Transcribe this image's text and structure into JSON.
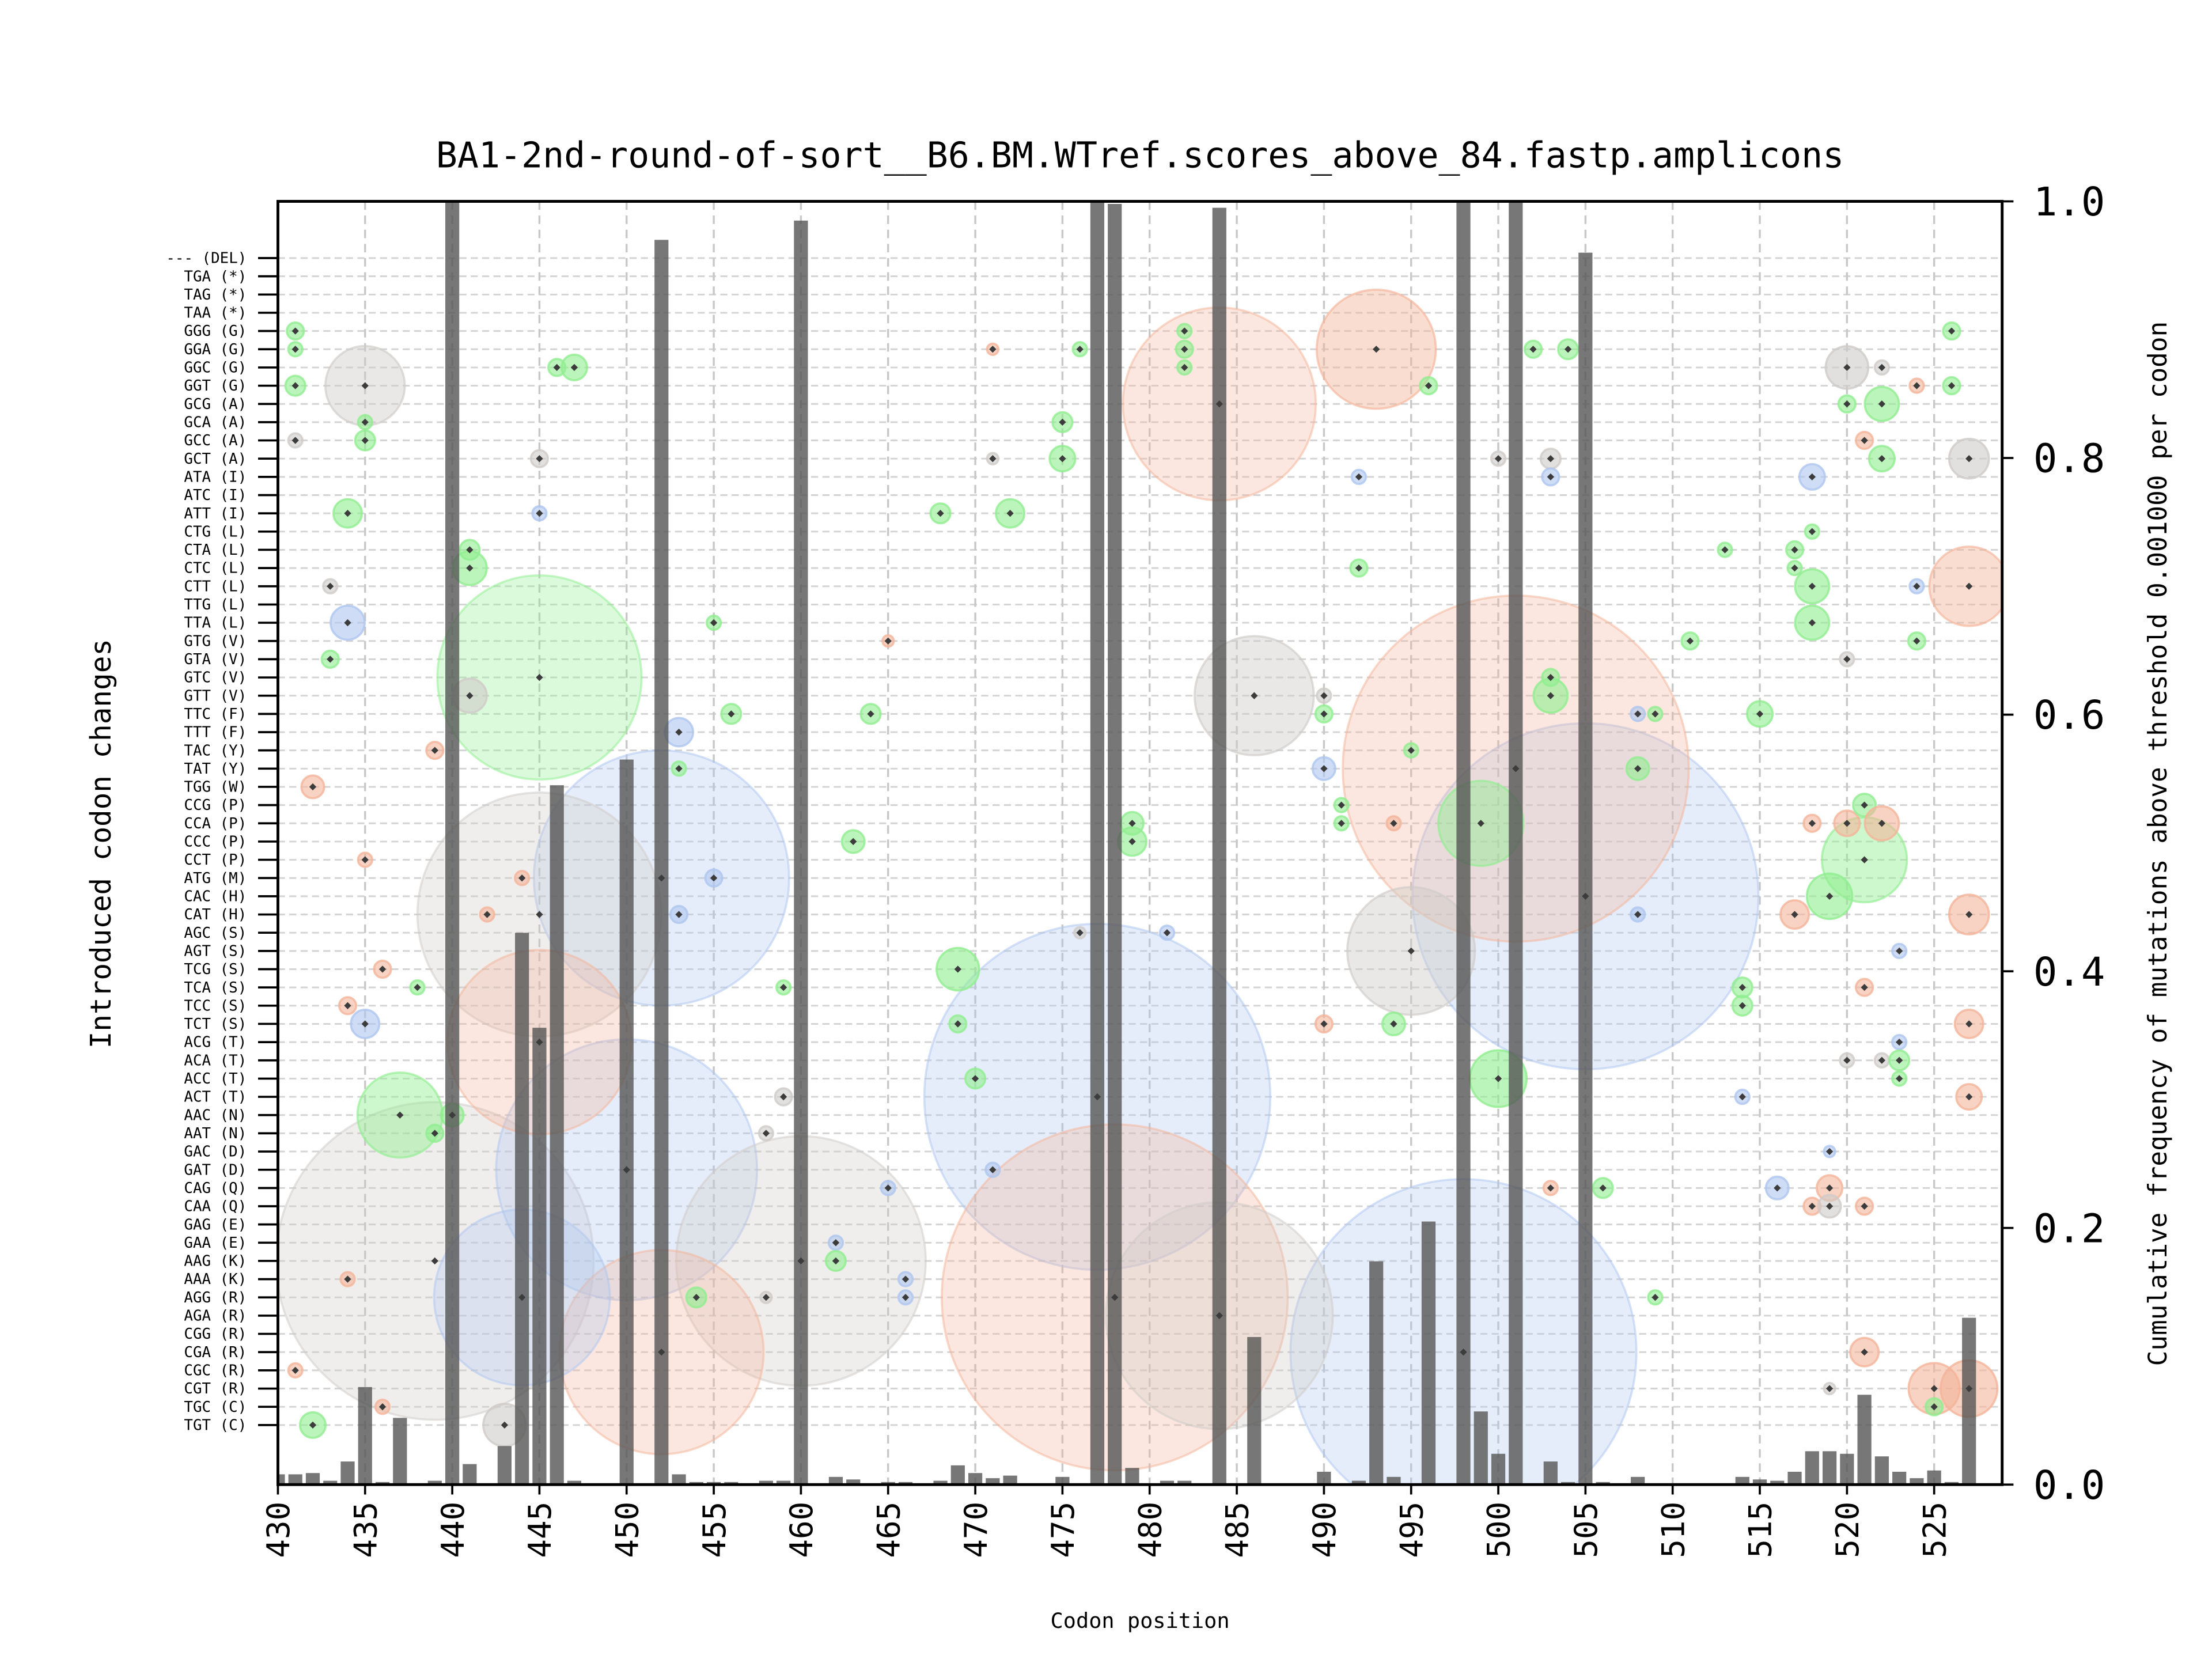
{
  "chart_data": {
    "type": "bar+bubble",
    "title": "BA1-2nd-round-of-sort__B6.BM.WTref.scores_above_84.fastp.amplicons",
    "xlabel": "Codon position",
    "ylabel_left": "Introduced codon changes",
    "ylabel_right": "Cumulative frequency of mutations above threshold 0.001000 per codon",
    "xlim": [
      430,
      528.9
    ],
    "ylim_right": [
      0,
      1
    ],
    "x_ticks": [
      430,
      435,
      440,
      445,
      450,
      455,
      460,
      465,
      470,
      475,
      480,
      485,
      490,
      495,
      500,
      505,
      510,
      515,
      520,
      525
    ],
    "y_ticks_right": [
      "0.0",
      "0.2",
      "0.4",
      "0.6",
      "0.8",
      "1.0"
    ],
    "y_tick_values_right": [
      0,
      0.2,
      0.4,
      0.6,
      0.8,
      1.0
    ],
    "grid": true,
    "codon_rows": [
      "--- (DEL)",
      "TGA (*)",
      "TAG (*)",
      "TAA (*)",
      "GGG (G)",
      "GGA (G)",
      "GGC (G)",
      "GGT (G)",
      "GCG (A)",
      "GCA (A)",
      "GCC (A)",
      "GCT (A)",
      "ATA (I)",
      "ATC (I)",
      "ATT (I)",
      "CTG (L)",
      "CTA (L)",
      "CTC (L)",
      "CTT (L)",
      "TTG (L)",
      "TTA (L)",
      "GTG (V)",
      "GTA (V)",
      "GTC (V)",
      "GTT (V)",
      "TTC (F)",
      "TTT (F)",
      "TAC (Y)",
      "TAT (Y)",
      "TGG (W)",
      "CCG (P)",
      "CCA (P)",
      "CCC (P)",
      "CCT (P)",
      "ATG (M)",
      "CAC (H)",
      "CAT (H)",
      "AGC (S)",
      "AGT (S)",
      "TCG (S)",
      "TCA (S)",
      "TCC (S)",
      "TCT (S)",
      "ACG (T)",
      "ACA (T)",
      "ACC (T)",
      "ACT (T)",
      "AAC (N)",
      "AAT (N)",
      "GAC (D)",
      "GAT (D)",
      "CAG (Q)",
      "CAA (Q)",
      "GAG (E)",
      "GAA (E)",
      "AAG (K)",
      "AAA (K)",
      "AGG (R)",
      "AGA (R)",
      "CGG (R)",
      "CGA (R)",
      "CGC (R)",
      "CGT (R)",
      "TGC (C)",
      "TGT (C)"
    ],
    "bars": [
      [
        430,
        0.008
      ],
      [
        431,
        0.008
      ],
      [
        432,
        0.009
      ],
      [
        433,
        0.003
      ],
      [
        434,
        0.018
      ],
      [
        435,
        0.076
      ],
      [
        436,
        0.002
      ],
      [
        437,
        0.052
      ],
      [
        439,
        0.003
      ],
      [
        440,
        1.0
      ],
      [
        441,
        0.016
      ],
      [
        443,
        0.03
      ],
      [
        444,
        0.43
      ],
      [
        445,
        0.356
      ],
      [
        446,
        0.545
      ],
      [
        447,
        0.003
      ],
      [
        450,
        0.565
      ],
      [
        452,
        0.97
      ],
      [
        453,
        0.008
      ],
      [
        454,
        0.002
      ],
      [
        455,
        0.002
      ],
      [
        456,
        0.002
      ],
      [
        458,
        0.003
      ],
      [
        459,
        0.003
      ],
      [
        460,
        0.985
      ],
      [
        462,
        0.006
      ],
      [
        463,
        0.004
      ],
      [
        465,
        0.002
      ],
      [
        466,
        0.002
      ],
      [
        468,
        0.003
      ],
      [
        469,
        0.015
      ],
      [
        470,
        0.009
      ],
      [
        471,
        0.005
      ],
      [
        472,
        0.007
      ],
      [
        475,
        0.006
      ],
      [
        477,
        1.0
      ],
      [
        478,
        0.998
      ],
      [
        479,
        0.013
      ],
      [
        481,
        0.003
      ],
      [
        482,
        0.003
      ],
      [
        484,
        0.995
      ],
      [
        486,
        0.115
      ],
      [
        490,
        0.01
      ],
      [
        492,
        0.003
      ],
      [
        493,
        0.174
      ],
      [
        494,
        0.006
      ],
      [
        496,
        0.205
      ],
      [
        498,
        1.0
      ],
      [
        499,
        0.057
      ],
      [
        500,
        0.024
      ],
      [
        501,
        1.0
      ],
      [
        503,
        0.018
      ],
      [
        504,
        0.002
      ],
      [
        505,
        0.96
      ],
      [
        506,
        0.002
      ],
      [
        508,
        0.006
      ],
      [
        510,
        0.001
      ],
      [
        514,
        0.006
      ],
      [
        515,
        0.004
      ],
      [
        516,
        0.003
      ],
      [
        517,
        0.01
      ],
      [
        518,
        0.026
      ],
      [
        519,
        0.026
      ],
      [
        520,
        0.024
      ],
      [
        521,
        0.07
      ],
      [
        522,
        0.022
      ],
      [
        523,
        0.01
      ],
      [
        524,
        0.005
      ],
      [
        525,
        0.011
      ],
      [
        526,
        0.002
      ],
      [
        527,
        0.13
      ]
    ],
    "bubble_colors": {
      "green": "#90ee90",
      "blue": "#aec6ef",
      "orange": "#f4b49a",
      "grey": "#cfcbc8"
    },
    "bubbles": [
      [
        439,
        "AAG (K)",
        "grey",
        112
      ],
      [
        477,
        "ACT (T)",
        "blue",
        122
      ],
      [
        478,
        "AGG (R)",
        "orange",
        122
      ],
      [
        498,
        "CGA (R)",
        "blue",
        122
      ],
      [
        505,
        "CAC (H)",
        "blue",
        122
      ],
      [
        501,
        "TAT (Y)",
        "orange",
        122
      ],
      [
        452,
        "ATG (M)",
        "blue",
        90
      ],
      [
        445,
        "CAT (H)",
        "grey",
        86
      ],
      [
        450,
        "GAT (D)",
        "blue",
        92
      ],
      [
        460,
        "AAG (K)",
        "grey",
        88
      ],
      [
        484,
        "AGA (R)",
        "grey",
        80
      ],
      [
        445,
        "GTC (V)",
        "green",
        72
      ],
      [
        484,
        "GCG (A)",
        "orange",
        68
      ],
      [
        445,
        "ACG (T)",
        "orange",
        65
      ],
      [
        452,
        "CGA (R)",
        "orange",
        72
      ],
      [
        444,
        "AGG (R)",
        "blue",
        62
      ],
      [
        493,
        "GGA (G)",
        "orange",
        42
      ],
      [
        486,
        "GTT (V)",
        "grey",
        42
      ],
      [
        495,
        "AGT (S)",
        "grey",
        45
      ],
      [
        437,
        "AAC (N)",
        "green",
        30
      ],
      [
        499,
        "CCA (P)",
        "green",
        30
      ],
      [
        521,
        "CCT (P)",
        "green",
        30
      ],
      [
        500,
        "ACC (T)",
        "green",
        20
      ],
      [
        519,
        "CAC (H)",
        "green",
        16
      ],
      [
        469,
        "TCG (S)",
        "green",
        15
      ],
      [
        435,
        "GGT (G)",
        "grey",
        28
      ],
      [
        527,
        "CTT (L)",
        "orange",
        28
      ],
      [
        525,
        "CGT (R)",
        "orange",
        18
      ],
      [
        527,
        "CGT (R)",
        "orange",
        20
      ],
      [
        431,
        "GGG (G)",
        "green",
        6
      ],
      [
        431,
        "GGA (G)",
        "green",
        5
      ],
      [
        431,
        "GGT (G)",
        "green",
        7
      ],
      [
        431,
        "GCC (A)",
        "grey",
        5
      ],
      [
        431,
        "CGC (R)",
        "orange",
        5
      ],
      [
        432,
        "TGG (W)",
        "orange",
        8
      ],
      [
        432,
        "TGT (C)",
        "green",
        9
      ],
      [
        433,
        "CTT (L)",
        "grey",
        5
      ],
      [
        433,
        "GTA (V)",
        "green",
        6
      ],
      [
        434,
        "ATT (I)",
        "green",
        10
      ],
      [
        434,
        "TTA (L)",
        "blue",
        12
      ],
      [
        434,
        "TCC (S)",
        "orange",
        6
      ],
      [
        434,
        "AAA (K)",
        "orange",
        5
      ],
      [
        435,
        "GCA (A)",
        "green",
        5
      ],
      [
        435,
        "GCC (A)",
        "green",
        7
      ],
      [
        435,
        "CCT (P)",
        "orange",
        5
      ],
      [
        435,
        "TCT (S)",
        "blue",
        10
      ],
      [
        436,
        "TCG (S)",
        "orange",
        6
      ],
      [
        436,
        "TGC (C)",
        "orange",
        5
      ],
      [
        438,
        "TCA (S)",
        "green",
        5
      ],
      [
        439,
        "TAC (Y)",
        "orange",
        6
      ],
      [
        439,
        "AAT (N)",
        "green",
        6
      ],
      [
        440,
        "AAC (N)",
        "green",
        8
      ],
      [
        441,
        "CTA (L)",
        "green",
        7
      ],
      [
        441,
        "CTC (L)",
        "green",
        12
      ],
      [
        441,
        "GTT (V)",
        "grey",
        12
      ],
      [
        442,
        "CAT (H)",
        "orange",
        5
      ],
      [
        443,
        "TGT (C)",
        "grey",
        15
      ],
      [
        444,
        "ATG (M)",
        "orange",
        5
      ],
      [
        445,
        "GCT (A)",
        "grey",
        6
      ],
      [
        445,
        "ATT (I)",
        "blue",
        5
      ],
      [
        446,
        "GGC (G)",
        "green",
        6
      ],
      [
        447,
        "GGC (G)",
        "green",
        9
      ],
      [
        453,
        "TTT (F)",
        "blue",
        10
      ],
      [
        453,
        "TAT (Y)",
        "green",
        5
      ],
      [
        453,
        "CAT (H)",
        "blue",
        6
      ],
      [
        454,
        "AGG (R)",
        "green",
        7
      ],
      [
        455,
        "TTA (L)",
        "green",
        5
      ],
      [
        455,
        "ATG (M)",
        "blue",
        6
      ],
      [
        456,
        "TTC (F)",
        "green",
        7
      ],
      [
        458,
        "AGG (R)",
        "grey",
        4
      ],
      [
        458,
        "AAT (N)",
        "grey",
        5
      ],
      [
        459,
        "ACT (T)",
        "grey",
        6
      ],
      [
        459,
        "TCA (S)",
        "green",
        5
      ],
      [
        462,
        "GAA (E)",
        "blue",
        5
      ],
      [
        462,
        "AAG (K)",
        "green",
        7
      ],
      [
        463,
        "CCC (P)",
        "green",
        8
      ],
      [
        464,
        "TTC (F)",
        "green",
        7
      ],
      [
        465,
        "GTG (V)",
        "orange",
        4
      ],
      [
        465,
        "CAG (Q)",
        "blue",
        5
      ],
      [
        466,
        "AAA (K)",
        "blue",
        5
      ],
      [
        466,
        "AGG (R)",
        "blue",
        5
      ],
      [
        468,
        "ATT (I)",
        "green",
        7
      ],
      [
        469,
        "TCT (S)",
        "green",
        6
      ],
      [
        470,
        "ACC (T)",
        "green",
        7
      ],
      [
        471,
        "GGA (G)",
        "orange",
        4
      ],
      [
        471,
        "GCT (A)",
        "grey",
        4
      ],
      [
        471,
        "GAT (D)",
        "blue",
        5
      ],
      [
        472,
        "ATT (I)",
        "green",
        10
      ],
      [
        475,
        "GCA (A)",
        "green",
        7
      ],
      [
        475,
        "GCT (A)",
        "green",
        9
      ],
      [
        476,
        "GGA (G)",
        "green",
        5
      ],
      [
        476,
        "AGC (S)",
        "grey",
        4
      ],
      [
        479,
        "CCA (P)",
        "green",
        8
      ],
      [
        479,
        "CCC (P)",
        "green",
        10
      ],
      [
        481,
        "AGC (S)",
        "blue",
        5
      ],
      [
        482,
        "GGG (G)",
        "green",
        5
      ],
      [
        482,
        "GGA (G)",
        "green",
        6
      ],
      [
        482,
        "GGC (G)",
        "green",
        5
      ],
      [
        490,
        "GTT (V)",
        "grey",
        5
      ],
      [
        490,
        "TTC (F)",
        "green",
        6
      ],
      [
        490,
        "TAT (Y)",
        "blue",
        8
      ],
      [
        490,
        "TCT (S)",
        "orange",
        6
      ],
      [
        491,
        "CCG (P)",
        "green",
        5
      ],
      [
        491,
        "CCA (P)",
        "green",
        5
      ],
      [
        492,
        "ATA (I)",
        "blue",
        5
      ],
      [
        492,
        "CTC (L)",
        "green",
        6
      ],
      [
        494,
        "CCA (P)",
        "orange",
        5
      ],
      [
        494,
        "TCT (S)",
        "green",
        8
      ],
      [
        495,
        "TAC (Y)",
        "green",
        5
      ],
      [
        496,
        "GGT (G)",
        "green",
        6
      ],
      [
        500,
        "GCT (A)",
        "grey",
        5
      ],
      [
        502,
        "GGA (G)",
        "green",
        6
      ],
      [
        503,
        "GCT (A)",
        "grey",
        7
      ],
      [
        503,
        "ATA (I)",
        "blue",
        6
      ],
      [
        503,
        "GTC (V)",
        "green",
        6
      ],
      [
        503,
        "GTT (V)",
        "green",
        12
      ],
      [
        503,
        "CAG (Q)",
        "orange",
        5
      ],
      [
        504,
        "GGA (G)",
        "green",
        7
      ],
      [
        506,
        "CAG (Q)",
        "green",
        7
      ],
      [
        508,
        "TTC (F)",
        "blue",
        5
      ],
      [
        508,
        "TAT (Y)",
        "green",
        8
      ],
      [
        508,
        "CAT (H)",
        "blue",
        5
      ],
      [
        509,
        "TTC (F)",
        "green",
        5
      ],
      [
        509,
        "AGG (R)",
        "green",
        5
      ],
      [
        511,
        "GTG (V)",
        "green",
        6
      ],
      [
        513,
        "CTA (L)",
        "green",
        5
      ],
      [
        514,
        "TCA (S)",
        "green",
        7
      ],
      [
        514,
        "TCC (S)",
        "green",
        7
      ],
      [
        514,
        "ACT (T)",
        "blue",
        5
      ],
      [
        515,
        "TTC (F)",
        "green",
        9
      ],
      [
        516,
        "CAG (Q)",
        "blue",
        8
      ],
      [
        517,
        "CTA (L)",
        "green",
        6
      ],
      [
        517,
        "CTC (L)",
        "green",
        5
      ],
      [
        517,
        "CAT (H)",
        "orange",
        10
      ],
      [
        518,
        "ATA (I)",
        "blue",
        9
      ],
      [
        518,
        "CTG (L)",
        "green",
        5
      ],
      [
        518,
        "CTT (L)",
        "green",
        12
      ],
      [
        518,
        "TTA (L)",
        "green",
        12
      ],
      [
        518,
        "CCA (P)",
        "orange",
        6
      ],
      [
        518,
        "CAA (Q)",
        "orange",
        6
      ],
      [
        519,
        "GAC (D)",
        "blue",
        4
      ],
      [
        519,
        "CAG (Q)",
        "orange",
        9
      ],
      [
        519,
        "CAA (Q)",
        "grey",
        8
      ],
      [
        519,
        "CGT (R)",
        "grey",
        4
      ],
      [
        520,
        "GGC (G)",
        "grey",
        15
      ],
      [
        520,
        "GCG (A)",
        "green",
        6
      ],
      [
        520,
        "GTA (V)",
        "grey",
        5
      ],
      [
        520,
        "CCA (P)",
        "orange",
        9
      ],
      [
        520,
        "ACA (T)",
        "grey",
        5
      ],
      [
        521,
        "GCC (A)",
        "orange",
        6
      ],
      [
        521,
        "CCG (P)",
        "green",
        8
      ],
      [
        521,
        "TCA (S)",
        "orange",
        6
      ],
      [
        521,
        "CAA (Q)",
        "orange",
        6
      ],
      [
        521,
        "CGA (R)",
        "orange",
        10
      ],
      [
        522,
        "GGC (G)",
        "grey",
        5
      ],
      [
        522,
        "GCG (A)",
        "green",
        12
      ],
      [
        522,
        "GCT (A)",
        "green",
        9
      ],
      [
        522,
        "CCA (P)",
        "orange",
        12
      ],
      [
        522,
        "ACA (T)",
        "grey",
        5
      ],
      [
        523,
        "AGT (S)",
        "blue",
        5
      ],
      [
        523,
        "ACG (T)",
        "blue",
        5
      ],
      [
        523,
        "ACA (T)",
        "green",
        7
      ],
      [
        523,
        "ACC (T)",
        "green",
        5
      ],
      [
        524,
        "GGT (G)",
        "orange",
        5
      ],
      [
        524,
        "CTT (L)",
        "blue",
        5
      ],
      [
        524,
        "GTG (V)",
        "green",
        6
      ],
      [
        525,
        "TGC (C)",
        "green",
        6
      ],
      [
        526,
        "GGG (G)",
        "green",
        6
      ],
      [
        526,
        "GGT (G)",
        "green",
        6
      ],
      [
        527,
        "GCT (A)",
        "grey",
        14
      ],
      [
        527,
        "CAT (H)",
        "orange",
        14
      ],
      [
        527,
        "TCT (S)",
        "orange",
        10
      ],
      [
        527,
        "ACT (T)",
        "orange",
        9
      ]
    ]
  }
}
